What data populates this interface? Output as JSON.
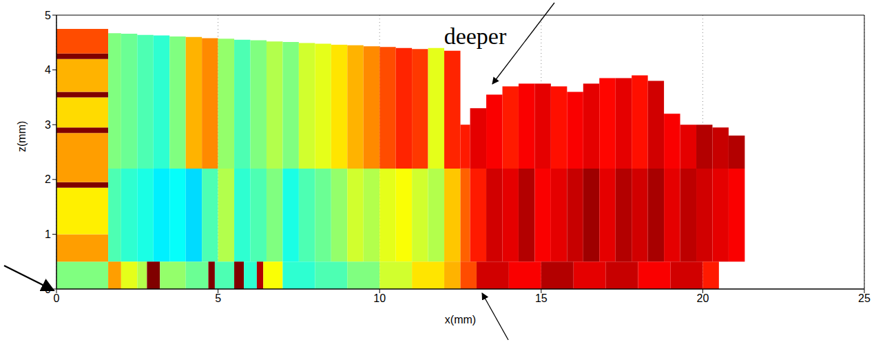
{
  "chart_data": {
    "type": "heatmap",
    "x_label": "x(mm)",
    "y_label": "z(mm)",
    "xlim": [
      0,
      25
    ],
    "xticks": [
      0,
      5,
      10,
      15,
      20,
      25
    ],
    "ylim": [
      0,
      5
    ],
    "yticks": [
      0,
      1,
      2,
      3,
      4,
      5
    ],
    "grid": true,
    "annotations": [
      {
        "text": "deeper"
      }
    ],
    "cells": [
      [
        0,
        1.6,
        0,
        0.5,
        0.5
      ],
      [
        0,
        1.6,
        0.5,
        1.0,
        0.72
      ],
      [
        0,
        1.6,
        1.0,
        1.85,
        0.64
      ],
      [
        0,
        1.6,
        1.85,
        1.95,
        1.0
      ],
      [
        0,
        1.6,
        1.95,
        2.85,
        0.72
      ],
      [
        0,
        1.6,
        2.85,
        2.95,
        1.0
      ],
      [
        0,
        1.6,
        2.95,
        3.5,
        0.66
      ],
      [
        0,
        1.6,
        3.5,
        3.6,
        1.0
      ],
      [
        0,
        1.6,
        3.6,
        4.2,
        0.7
      ],
      [
        0,
        1.6,
        4.2,
        4.3,
        1.0
      ],
      [
        0,
        1.6,
        4.3,
        4.75,
        0.8
      ],
      [
        1.6,
        2.0,
        0.5,
        2.2,
        0.45
      ],
      [
        1.6,
        2.0,
        2.2,
        4.67,
        0.5
      ],
      [
        2.0,
        2.5,
        0.5,
        2.2,
        0.42
      ],
      [
        2.0,
        2.5,
        2.2,
        4.66,
        0.48
      ],
      [
        2.5,
        3.0,
        0.5,
        2.2,
        0.4
      ],
      [
        2.5,
        3.0,
        2.2,
        4.64,
        0.45
      ],
      [
        3.0,
        3.5,
        0.5,
        2.2,
        0.36
      ],
      [
        3.0,
        3.5,
        2.2,
        4.63,
        0.42
      ],
      [
        3.5,
        4.0,
        0.5,
        2.2,
        0.38
      ],
      [
        3.5,
        4.0,
        2.2,
        4.61,
        0.5
      ],
      [
        4.0,
        4.5,
        0.5,
        2.2,
        0.34
      ],
      [
        4.0,
        4.5,
        2.2,
        4.6,
        0.7
      ],
      [
        4.5,
        5.0,
        0.5,
        2.2,
        0.45
      ],
      [
        4.5,
        5.0,
        2.2,
        4.58,
        0.74
      ],
      [
        5.0,
        5.5,
        0.5,
        2.2,
        0.55
      ],
      [
        5.0,
        5.5,
        2.2,
        4.57,
        0.52
      ],
      [
        5.5,
        6.0,
        0.5,
        2.2,
        0.42
      ],
      [
        5.5,
        6.0,
        2.2,
        4.55,
        0.45
      ],
      [
        6.0,
        6.5,
        0.5,
        2.2,
        0.45
      ],
      [
        6.0,
        6.5,
        2.2,
        4.54,
        0.5
      ],
      [
        6.5,
        7.0,
        0.5,
        2.2,
        0.5
      ],
      [
        6.5,
        7.0,
        2.2,
        4.52,
        0.55
      ],
      [
        7.0,
        7.5,
        0.5,
        2.2,
        0.4
      ],
      [
        7.0,
        7.5,
        2.2,
        4.51,
        0.5
      ],
      [
        7.5,
        8.0,
        0.5,
        2.2,
        0.45
      ],
      [
        7.5,
        8.0,
        2.2,
        4.49,
        0.58
      ],
      [
        8.0,
        8.5,
        0.5,
        2.2,
        0.48
      ],
      [
        8.0,
        8.5,
        2.2,
        4.48,
        0.6
      ],
      [
        8.5,
        9.0,
        0.5,
        2.2,
        0.52
      ],
      [
        8.5,
        9.0,
        2.2,
        4.46,
        0.65
      ],
      [
        9.0,
        9.5,
        0.5,
        2.2,
        0.58
      ],
      [
        9.0,
        9.5,
        2.2,
        4.45,
        0.7
      ],
      [
        9.5,
        10.0,
        0.5,
        2.2,
        0.55
      ],
      [
        9.5,
        10.0,
        2.2,
        4.43,
        0.74
      ],
      [
        10.0,
        10.5,
        0.5,
        2.2,
        0.6
      ],
      [
        10.0,
        10.5,
        2.2,
        4.42,
        0.8
      ],
      [
        10.5,
        11.0,
        0.5,
        2.2,
        0.62
      ],
      [
        10.5,
        11.0,
        2.2,
        4.4,
        0.84
      ],
      [
        11.0,
        11.5,
        0.5,
        2.2,
        0.58
      ],
      [
        11.0,
        11.5,
        2.2,
        4.38,
        0.82
      ],
      [
        11.5,
        12.0,
        0.5,
        2.2,
        0.55
      ],
      [
        11.5,
        12.0,
        2.2,
        4.4,
        0.6
      ],
      [
        12.0,
        12.5,
        0.5,
        2.2,
        0.68
      ],
      [
        12.0,
        12.5,
        2.2,
        4.35,
        0.84
      ],
      [
        12.5,
        12.8,
        0.5,
        2.2,
        0.78
      ],
      [
        12.5,
        12.8,
        2.2,
        3.0,
        0.85
      ],
      [
        12.8,
        13.3,
        0.5,
        2.2,
        0.85
      ],
      [
        12.8,
        13.3,
        2.2,
        3.3,
        0.9
      ],
      [
        13.3,
        13.8,
        0.5,
        2.2,
        0.92
      ],
      [
        13.3,
        13.8,
        2.2,
        3.55,
        0.88
      ],
      [
        13.8,
        14.3,
        0.5,
        2.2,
        0.9
      ],
      [
        13.8,
        14.3,
        2.2,
        3.7,
        0.85
      ],
      [
        14.3,
        14.8,
        0.5,
        2.2,
        0.95
      ],
      [
        14.3,
        14.8,
        2.2,
        3.75,
        0.88
      ],
      [
        14.8,
        15.3,
        0.5,
        2.2,
        0.88
      ],
      [
        14.8,
        15.3,
        2.2,
        3.75,
        0.9
      ],
      [
        15.3,
        15.8,
        0.5,
        2.2,
        0.9
      ],
      [
        15.3,
        15.8,
        2.2,
        3.7,
        0.86
      ],
      [
        15.8,
        16.3,
        0.5,
        2.2,
        0.93
      ],
      [
        15.8,
        16.3,
        2.2,
        3.6,
        0.88
      ],
      [
        16.3,
        16.8,
        0.5,
        2.2,
        0.97
      ],
      [
        16.3,
        16.8,
        2.2,
        3.75,
        0.9
      ],
      [
        16.8,
        17.3,
        0.5,
        2.2,
        0.9
      ],
      [
        16.8,
        17.3,
        2.2,
        3.85,
        0.87
      ],
      [
        17.3,
        17.8,
        0.5,
        2.2,
        0.95
      ],
      [
        17.3,
        17.8,
        2.2,
        3.85,
        0.9
      ],
      [
        17.8,
        18.3,
        0.5,
        2.2,
        0.92
      ],
      [
        17.8,
        18.3,
        2.2,
        3.9,
        0.86
      ],
      [
        18.3,
        18.8,
        0.5,
        2.2,
        0.96
      ],
      [
        18.3,
        18.8,
        2.2,
        3.8,
        0.92
      ],
      [
        18.8,
        19.3,
        0.5,
        2.2,
        0.9
      ],
      [
        18.8,
        19.3,
        2.2,
        3.2,
        0.88
      ],
      [
        19.3,
        19.8,
        0.5,
        2.2,
        0.94
      ],
      [
        19.3,
        19.8,
        2.2,
        3.0,
        0.9
      ],
      [
        19.8,
        20.3,
        0.5,
        2.2,
        0.92
      ],
      [
        19.8,
        20.3,
        2.2,
        3.0,
        0.95
      ],
      [
        20.3,
        20.8,
        0.5,
        2.2,
        0.9
      ],
      [
        20.3,
        20.8,
        2.2,
        2.95,
        0.93
      ],
      [
        20.8,
        21.3,
        0.5,
        2.2,
        0.88
      ],
      [
        20.8,
        21.3,
        2.2,
        2.8,
        0.95
      ],
      [
        1.6,
        2.0,
        0,
        0.5,
        0.72
      ],
      [
        2.0,
        2.5,
        0,
        0.5,
        0.6
      ],
      [
        2.5,
        2.8,
        0,
        0.5,
        0.55
      ],
      [
        2.8,
        3.2,
        0,
        0.5,
        1.0
      ],
      [
        3.2,
        4.0,
        0,
        0.5,
        0.52
      ],
      [
        4.0,
        4.7,
        0,
        0.5,
        0.48
      ],
      [
        4.7,
        4.9,
        0,
        0.5,
        1.0
      ],
      [
        4.9,
        5.5,
        0,
        0.5,
        0.45
      ],
      [
        5.5,
        5.8,
        0,
        0.5,
        1.0
      ],
      [
        5.8,
        6.2,
        0,
        0.5,
        0.42
      ],
      [
        6.2,
        6.4,
        0,
        0.5,
        0.95
      ],
      [
        6.4,
        7.0,
        0,
        0.5,
        0.62
      ],
      [
        7.0,
        8.0,
        0,
        0.5,
        0.42
      ],
      [
        8.0,
        9.0,
        0,
        0.5,
        0.45
      ],
      [
        9.0,
        10.0,
        0,
        0.5,
        0.5
      ],
      [
        10.0,
        11.0,
        0,
        0.5,
        0.58
      ],
      [
        11.0,
        12.0,
        0,
        0.5,
        0.65
      ],
      [
        12.0,
        12.5,
        0,
        0.5,
        0.7
      ],
      [
        12.5,
        13.0,
        0,
        0.5,
        0.8
      ],
      [
        13.0,
        14.0,
        0,
        0.5,
        0.92
      ],
      [
        14.0,
        15.0,
        0,
        0.5,
        0.88
      ],
      [
        15.0,
        16.0,
        0,
        0.5,
        0.95
      ],
      [
        16.0,
        17.0,
        0,
        0.5,
        0.9
      ],
      [
        17.0,
        18.0,
        0,
        0.5,
        0.93
      ],
      [
        18.0,
        19.0,
        0,
        0.5,
        0.88
      ],
      [
        19.0,
        20.0,
        0,
        0.5,
        0.92
      ],
      [
        20.0,
        20.5,
        0,
        0.5,
        0.85
      ]
    ]
  }
}
